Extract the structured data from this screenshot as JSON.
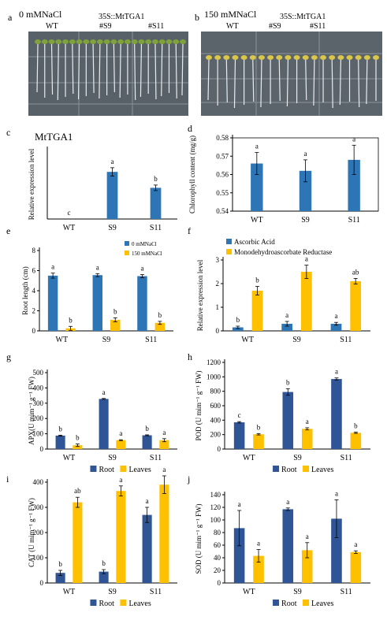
{
  "panel_a": {
    "letter": "a",
    "condition": "0 mMNaCl",
    "construct": "35S::MtTGA1",
    "lines": [
      "WT",
      "#S9",
      "#S11"
    ]
  },
  "panel_b": {
    "letter": "b",
    "condition": "150 mMNaCl",
    "construct": "35S::MtTGA1",
    "lines": [
      "WT",
      "#S9",
      "#S11"
    ]
  },
  "colors": {
    "blue": "#2e75b6",
    "darkblue": "#2f5597",
    "yellow": "#ffc000"
  },
  "chart_data": [
    {
      "letter": "c",
      "type": "bar",
      "title": "MtTGA1",
      "ylabel": "Relative expression level",
      "categories": [
        "WT",
        "S9",
        "S11"
      ],
      "ylim": [
        0,
        1
      ],
      "ticks": [],
      "series": [
        {
          "name": "",
          "color": "#2e75b6",
          "values": [
            0,
            0.68,
            0.45
          ],
          "errors": [
            0,
            0.06,
            0.04
          ],
          "letters": [
            "c",
            "a",
            "b"
          ]
        }
      ],
      "legend": []
    },
    {
      "letter": "d",
      "type": "bar",
      "title": "",
      "ylabel": "Chlorophyll content (mg/g)",
      "categories": [
        "WT",
        "S9",
        "S11"
      ],
      "ylim": [
        0.54,
        0.58
      ],
      "ticks": [
        "0.54",
        "0.55",
        "0.56",
        "0.57",
        "0.58"
      ],
      "series": [
        {
          "name": "",
          "color": "#2e75b6",
          "values": [
            0.566,
            0.562,
            0.568
          ],
          "errors": [
            0.006,
            0.006,
            0.008
          ],
          "letters": [
            "a",
            "a",
            "a"
          ]
        }
      ],
      "legend": []
    },
    {
      "letter": "e",
      "type": "bar",
      "title": "",
      "ylabel": "Root length (cm)",
      "categories": [
        "WT",
        "S9",
        "S11"
      ],
      "ylim": [
        0,
        8
      ],
      "ticks": [
        "0",
        "2",
        "4",
        "6",
        "8"
      ],
      "series": [
        {
          "name": "0 mMNaCl",
          "color": "#2e75b6",
          "values": [
            5.5,
            5.55,
            5.45
          ],
          "errors": [
            0.25,
            0.15,
            0.15
          ],
          "letters": [
            "a",
            "a",
            "a"
          ]
        },
        {
          "name": "150 mMNaCl",
          "color": "#ffc000",
          "values": [
            0.25,
            1.1,
            0.8
          ],
          "errors": [
            0.2,
            0.2,
            0.15
          ],
          "letters": [
            "b",
            "b",
            "b"
          ]
        }
      ],
      "legend": [
        "0 mMNaCl",
        "150 mMNaCl"
      ],
      "legend_pos": "top-right"
    },
    {
      "letter": "f",
      "type": "bar",
      "title": "",
      "ylabel": "Relative expression level",
      "categories": [
        "WT",
        "S9",
        "S11"
      ],
      "ylim": [
        0,
        3
      ],
      "ticks": [
        "0",
        "1",
        "2",
        "3"
      ],
      "series": [
        {
          "name": "Ascorbic Acid",
          "color": "#2e75b6",
          "values": [
            0.15,
            0.3,
            0.3
          ],
          "errors": [
            0.05,
            0.1,
            0.06
          ],
          "letters": [
            "b",
            "a",
            "a"
          ]
        },
        {
          "name": "Monodehydroascorbate Reductase",
          "color": "#ffc000",
          "values": [
            1.7,
            2.5,
            2.1
          ],
          "errors": [
            0.18,
            0.28,
            0.12
          ],
          "letters": [
            "b",
            "a",
            "ab"
          ]
        }
      ],
      "legend": [
        "Ascorbic Acid",
        "Monodehydroascorbate Reductase"
      ],
      "legend_pos": "top"
    },
    {
      "letter": "g",
      "type": "bar",
      "title": "",
      "ylabel": "APX(U mim⁻¹ g⁻¹ FW)",
      "categories": [
        "WT",
        "S9",
        "S11"
      ],
      "ylim": [
        0,
        500
      ],
      "ticks": [
        "0",
        "100",
        "200",
        "300",
        "400",
        "500"
      ],
      "series": [
        {
          "name": "Root",
          "color": "#2f5597",
          "values": [
            88,
            328,
            90
          ],
          "errors": [
            3,
            3,
            3
          ],
          "letters": [
            "b",
            "a",
            "b"
          ]
        },
        {
          "name": "Leaves",
          "color": "#ffc000",
          "values": [
            25,
            58,
            58
          ],
          "errors": [
            8,
            3,
            10
          ],
          "letters": [
            "b",
            "a",
            "a"
          ]
        }
      ],
      "legend": [
        "Root",
        "Leaves"
      ],
      "legend_pos": "bottom"
    },
    {
      "letter": "h",
      "type": "bar",
      "title": "",
      "ylabel": "POD (U mim⁻¹ g⁻¹ FW)",
      "categories": [
        "WT",
        "S9",
        "S11"
      ],
      "ylim": [
        0,
        1200
      ],
      "ticks": [
        "0",
        "200",
        "400",
        "600",
        "800",
        "1000",
        "1200"
      ],
      "series": [
        {
          "name": "Root",
          "color": "#2f5597",
          "values": [
            370,
            790,
            970
          ],
          "errors": [
            10,
            45,
            15
          ],
          "letters": [
            "c",
            "b",
            "a"
          ]
        },
        {
          "name": "Leaves",
          "color": "#ffc000",
          "values": [
            205,
            280,
            225
          ],
          "errors": [
            10,
            15,
            8
          ],
          "letters": [
            "b",
            "a",
            "b"
          ]
        }
      ],
      "legend": [
        "Root",
        "Leaves"
      ],
      "legend_pos": "bottom"
    },
    {
      "letter": "i",
      "type": "bar",
      "title": "",
      "ylabel": "CAT (U mim⁻¹ g⁻¹ FW)",
      "categories": [
        "WT",
        "S9",
        "S11"
      ],
      "ylim": [
        0,
        400
      ],
      "ticks": [
        "0",
        "100",
        "200",
        "300",
        "400"
      ],
      "series": [
        {
          "name": "Root",
          "color": "#2f5597",
          "values": [
            40,
            45,
            270
          ],
          "errors": [
            10,
            8,
            30
          ],
          "letters": [
            "b",
            "b",
            "a"
          ]
        },
        {
          "name": "Leaves",
          "color": "#ffc000",
          "values": [
            320,
            365,
            390
          ],
          "errors": [
            20,
            20,
            35
          ],
          "letters": [
            "ab",
            "a",
            "a"
          ]
        }
      ],
      "legend": [
        "Root",
        "Leaves"
      ],
      "legend_pos": "bottom"
    },
    {
      "letter": "j",
      "type": "bar",
      "title": "",
      "ylabel": "SOD (U mim⁻¹ g⁻¹ FW)",
      "categories": [
        "WT",
        "S9",
        "S11"
      ],
      "ylim": [
        0,
        140
      ],
      "ticks": [
        "0",
        "20",
        "40",
        "60",
        "80",
        "100",
        "120",
        "140"
      ],
      "series": [
        {
          "name": "Root",
          "color": "#2f5597",
          "values": [
            87,
            117,
            102
          ],
          "errors": [
            28,
            2,
            30
          ],
          "letters": [
            "a",
            "a",
            "a"
          ]
        },
        {
          "name": "Leaves",
          "color": "#ffc000",
          "values": [
            43,
            52,
            49
          ],
          "errors": [
            10,
            12,
            2
          ],
          "letters": [
            "a",
            "a",
            "a"
          ]
        }
      ],
      "legend": [
        "Root",
        "Leaves"
      ],
      "legend_pos": "bottom"
    }
  ]
}
